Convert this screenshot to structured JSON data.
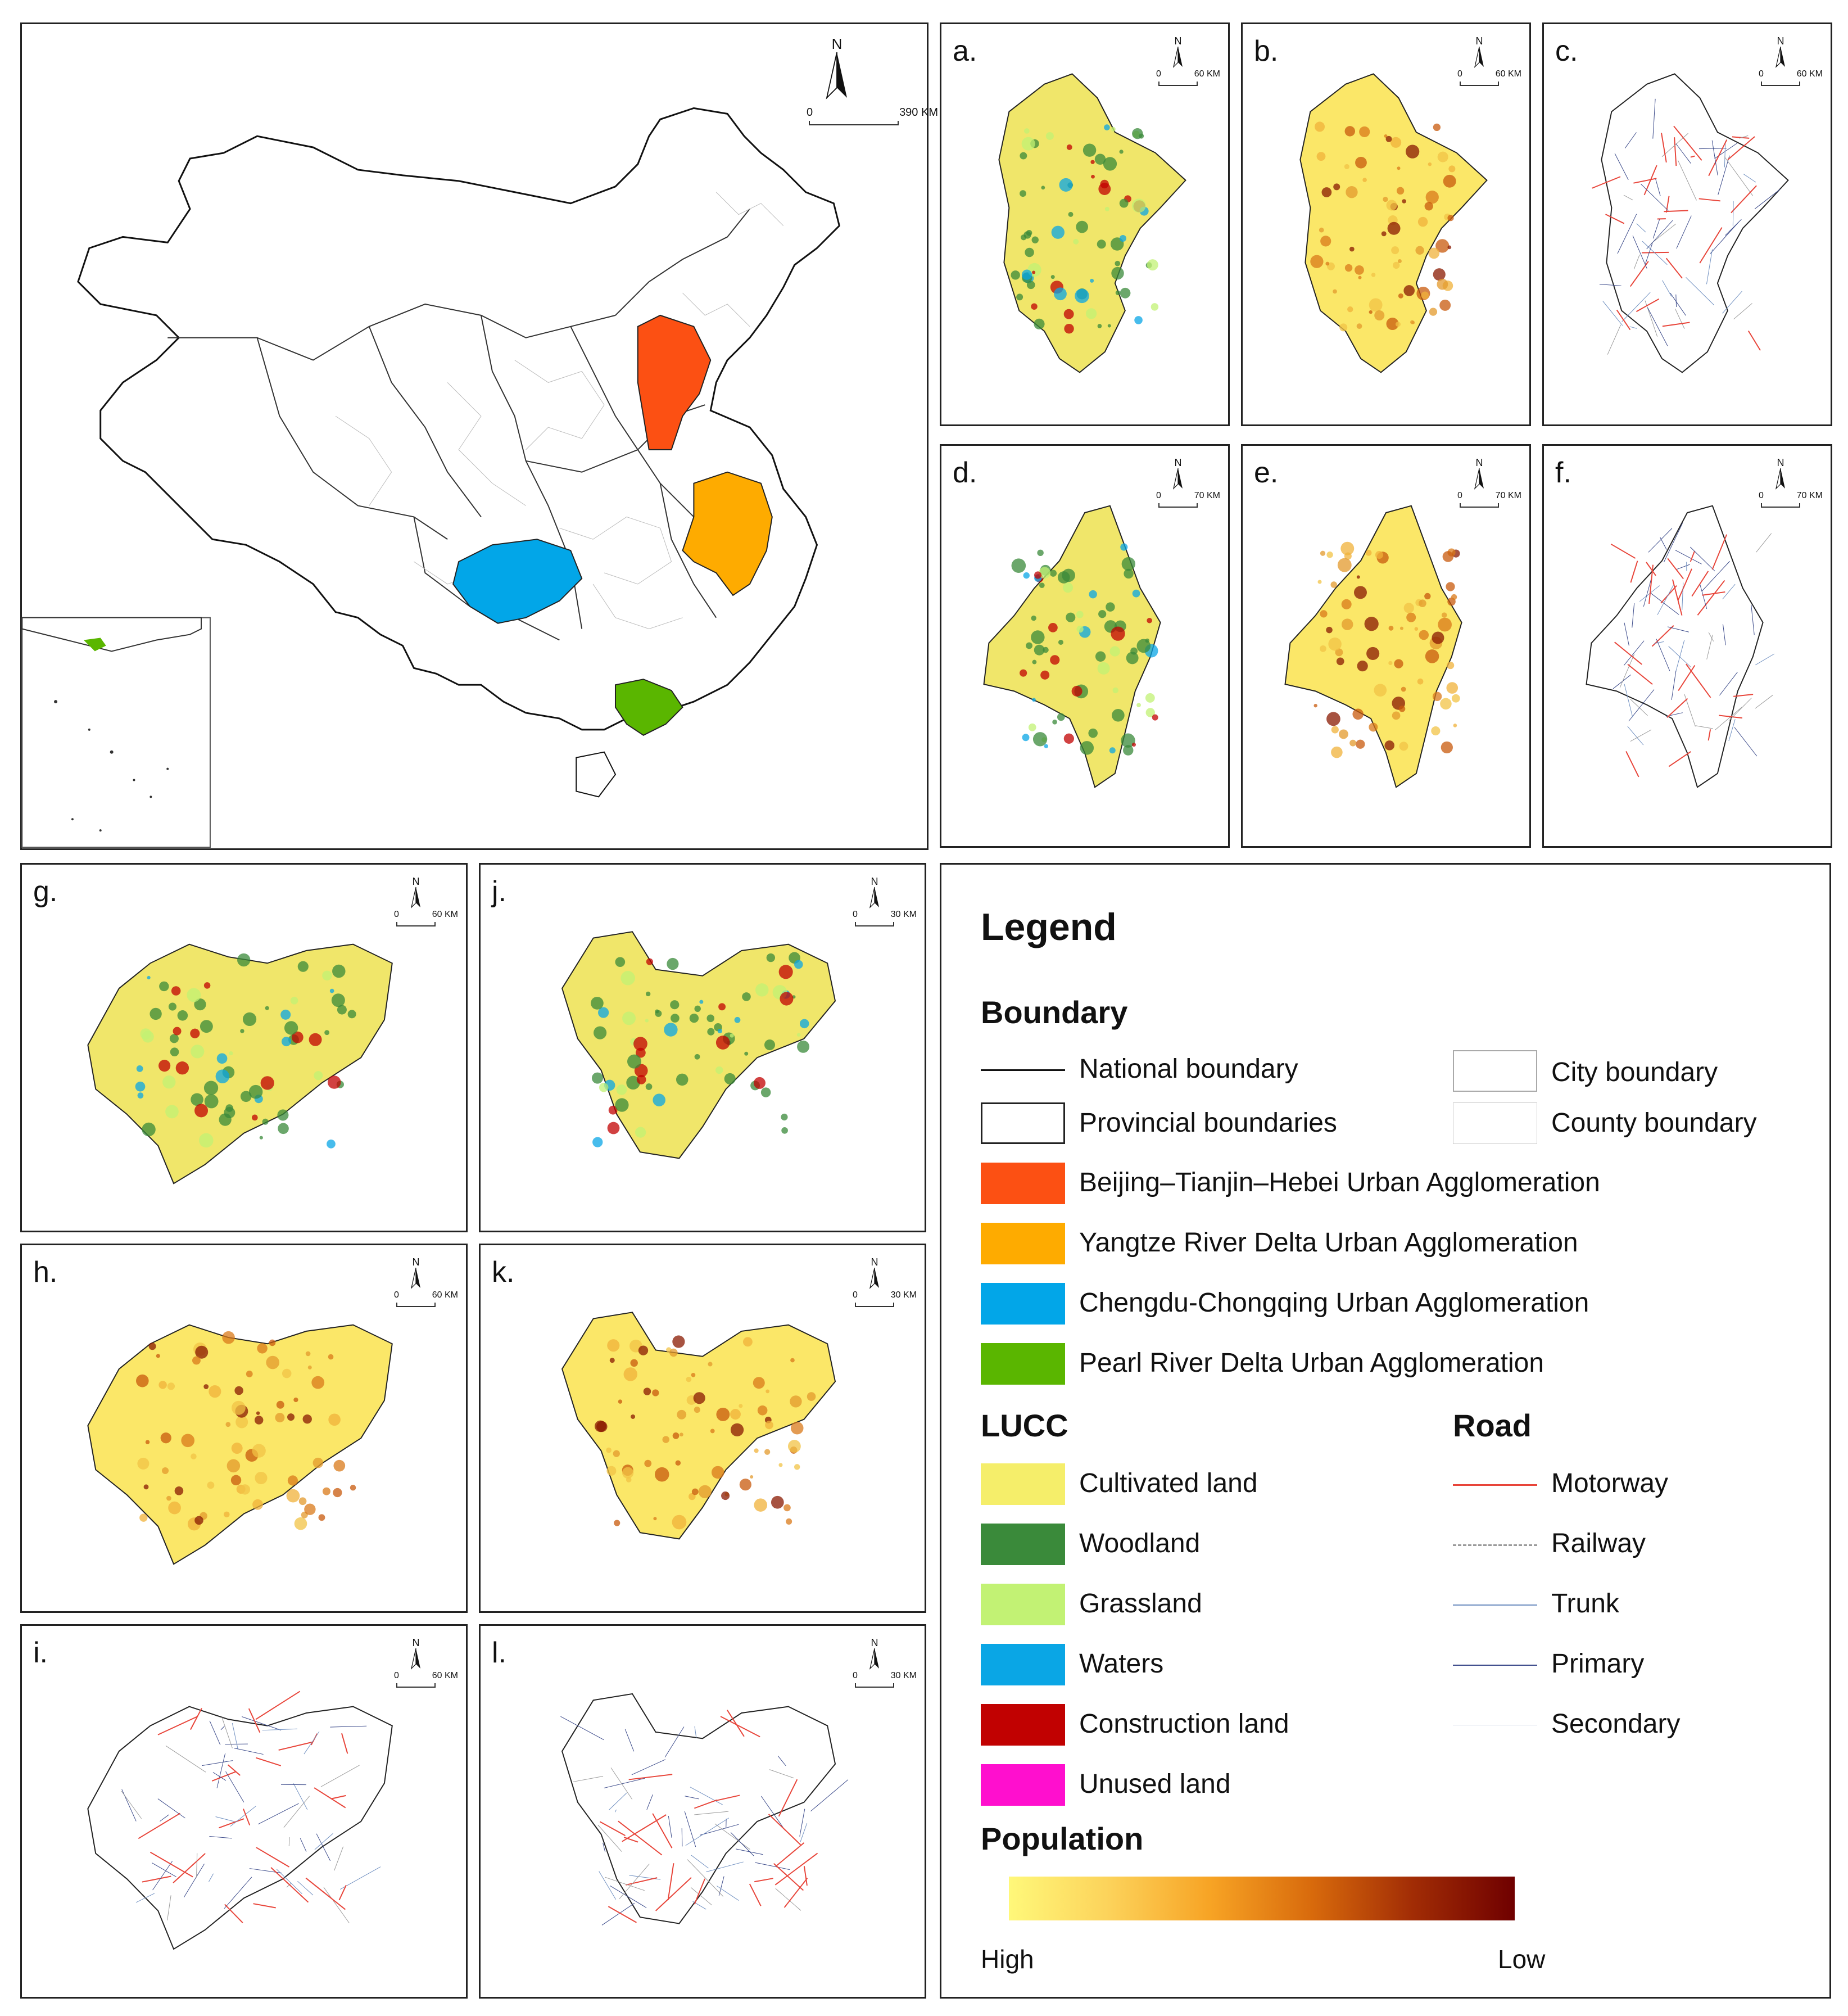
{
  "main_map": {
    "north_label": "N",
    "scale_zero": "0",
    "scale_distance": "390 KM"
  },
  "panels": [
    {
      "id": "a",
      "label": "a.",
      "kind": "lucc",
      "region": "bth",
      "scale_distance": "60 KM"
    },
    {
      "id": "b",
      "label": "b.",
      "kind": "population",
      "region": "bth",
      "scale_distance": "60 KM"
    },
    {
      "id": "c",
      "label": "c.",
      "kind": "road",
      "region": "bth",
      "scale_distance": "60 KM"
    },
    {
      "id": "d",
      "label": "d.",
      "kind": "lucc",
      "region": "yrd",
      "scale_distance": "70 KM"
    },
    {
      "id": "e",
      "label": "e.",
      "kind": "population",
      "region": "yrd",
      "scale_distance": "70 KM"
    },
    {
      "id": "f",
      "label": "f.",
      "kind": "road",
      "region": "yrd",
      "scale_distance": "70 KM"
    },
    {
      "id": "g",
      "label": "g.",
      "kind": "lucc",
      "region": "cc",
      "scale_distance": "60 KM"
    },
    {
      "id": "h",
      "label": "h.",
      "kind": "population",
      "region": "cc",
      "scale_distance": "60 KM"
    },
    {
      "id": "i",
      "label": "i.",
      "kind": "road",
      "region": "cc",
      "scale_distance": "60 KM"
    },
    {
      "id": "j",
      "label": "j.",
      "kind": "lucc",
      "region": "prd",
      "scale_distance": "30 KM"
    },
    {
      "id": "k",
      "label": "k.",
      "kind": "population",
      "region": "prd",
      "scale_distance": "30 KM"
    },
    {
      "id": "l",
      "label": "l.",
      "kind": "road",
      "region": "prd",
      "scale_distance": "30 KM"
    }
  ],
  "legend": {
    "title": "Legend",
    "boundary": {
      "heading": "Boundary",
      "national": "National boundary",
      "provincial": "Provincial boundaries",
      "city": "City boundary",
      "county": "County boundary"
    },
    "agglomerations": [
      {
        "label": "Beijing–Tianjin–Hebei Urban Agglomeration",
        "color": "#fc5013"
      },
      {
        "label": "Yangtze River Delta Urban Agglomeration",
        "color": "#feab00"
      },
      {
        "label": "Chengdu-Chongqing Urban Agglomeration",
        "color": "#02a6e8"
      },
      {
        "label": "Pearl River Delta Urban Agglomeration",
        "color": "#5ab600"
      }
    ],
    "lucc": {
      "heading": "LUCC",
      "items": [
        {
          "label": "Cultivated land",
          "color": "#f5ee6a"
        },
        {
          "label": "Woodland",
          "color": "#3a8a3a"
        },
        {
          "label": "Grassland",
          "color": "#c2f274"
        },
        {
          "label": "Waters",
          "color": "#0aa6e5"
        },
        {
          "label": "Construction land",
          "color": "#c10101"
        },
        {
          "label": "Unused land",
          "color": "#ff0fce"
        }
      ]
    },
    "road": {
      "heading": "Road",
      "items": [
        {
          "label": "Motorway",
          "color": "#e8453a"
        },
        {
          "label": "Railway",
          "color": "#9a9a9a"
        },
        {
          "label": "Trunk",
          "color": "#6f8fc0"
        },
        {
          "label": "Primary",
          "color": "#3b4a8a"
        },
        {
          "label": "Secondary",
          "color": "#c9cfe0"
        }
      ]
    },
    "population": {
      "heading": "Population",
      "left_label": "High",
      "right_label": "Low"
    }
  }
}
